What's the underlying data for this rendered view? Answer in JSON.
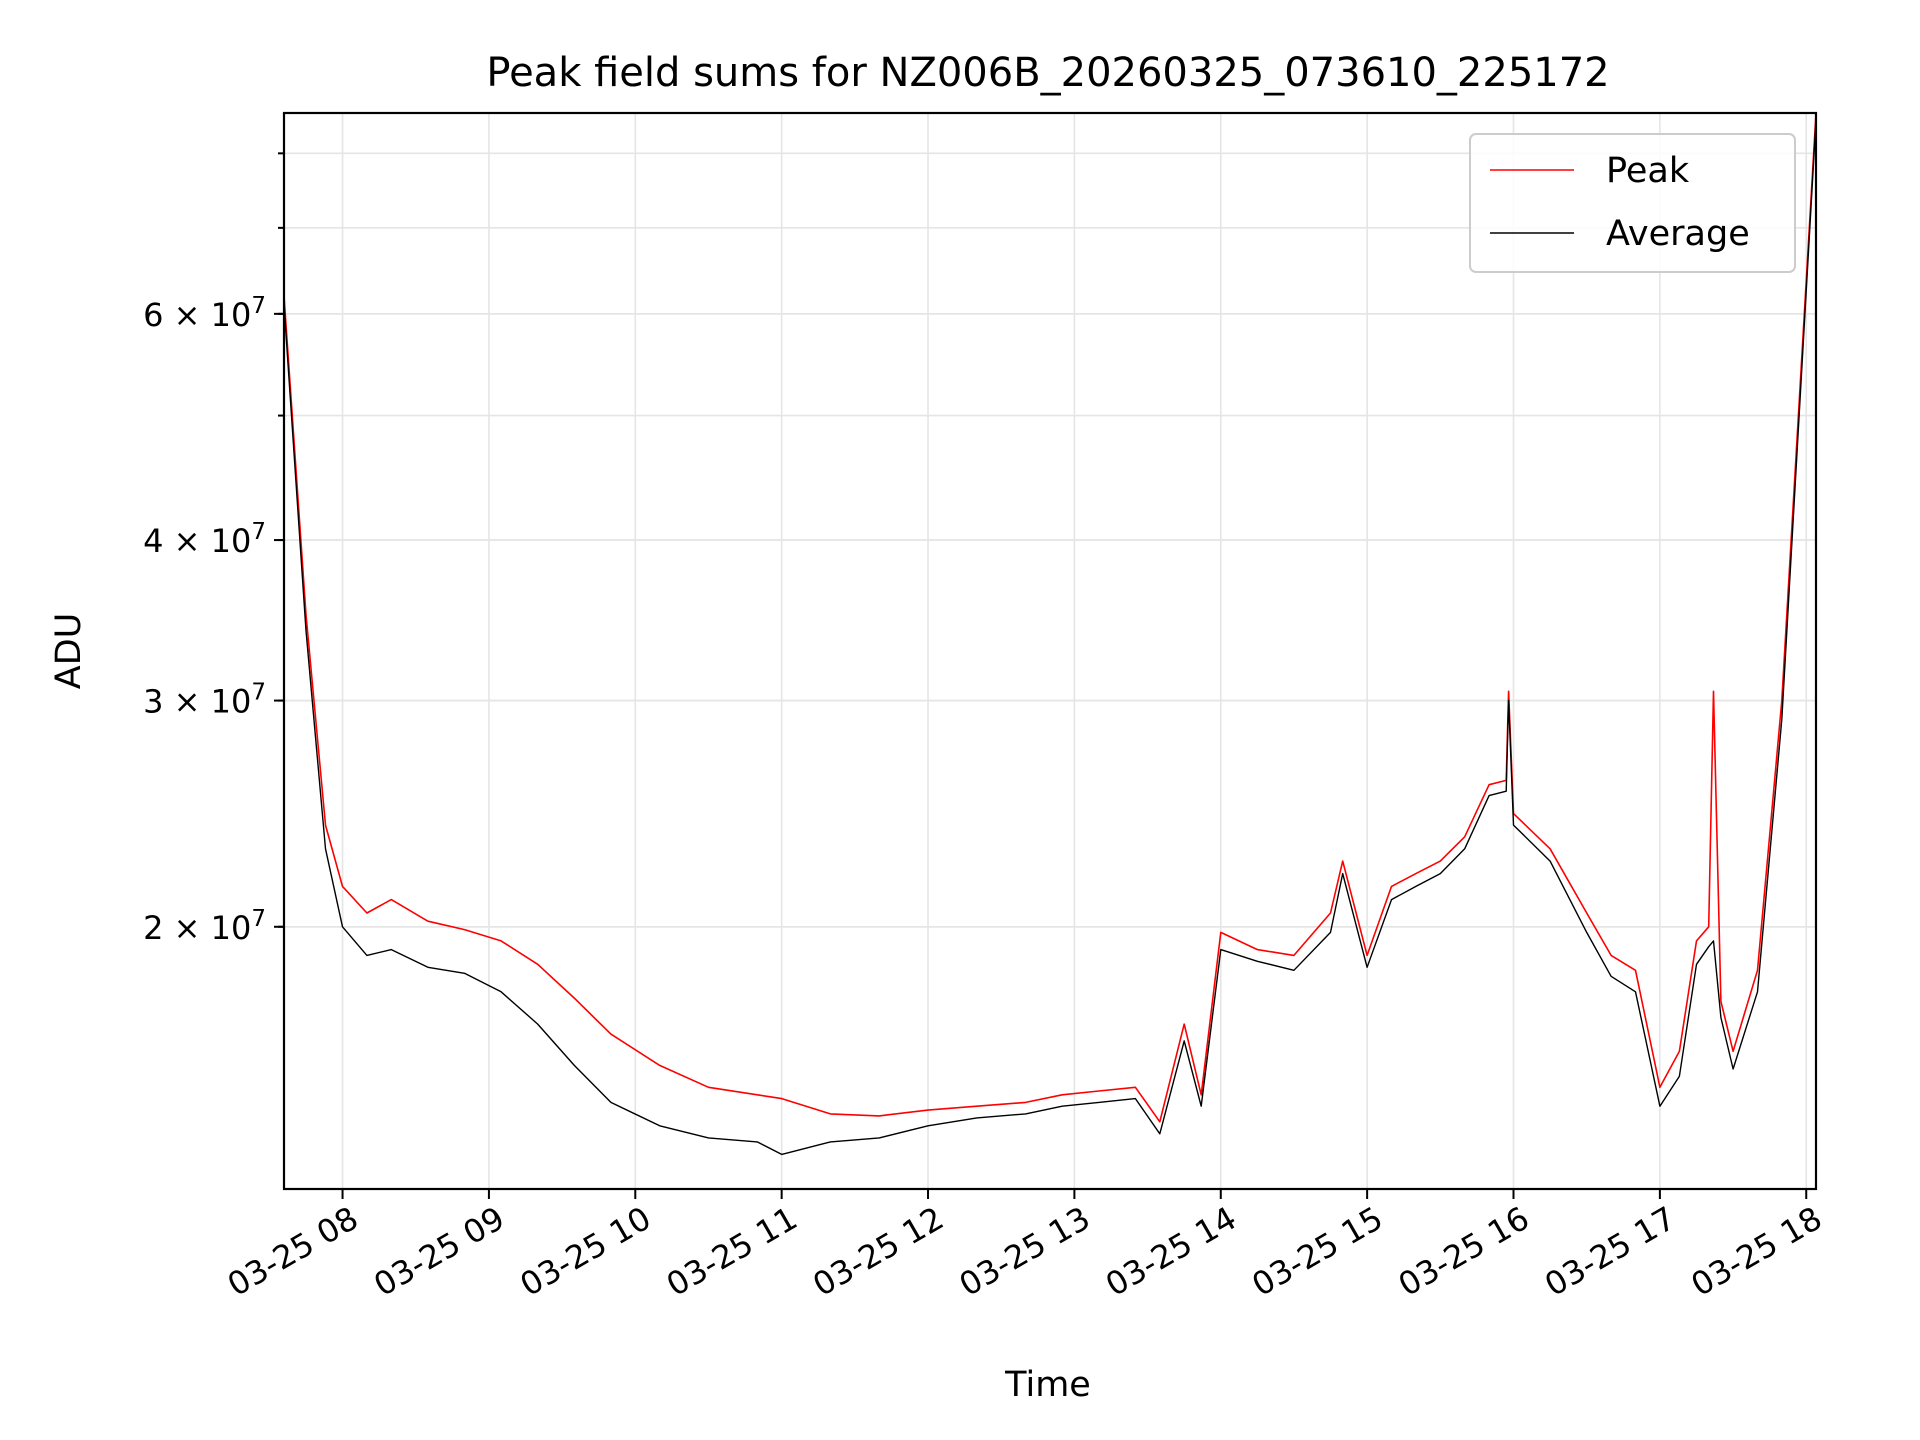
{
  "chart_data": {
    "type": "line",
    "title": "Peak field sums for NZ006B_20260325_073610_225172",
    "xlabel": "Time",
    "ylabel": "ADU",
    "y_scale": "log",
    "ylim": [
      12500000,
      86000000
    ],
    "x_range": [
      "03-25 07:36",
      "03-25 18:04"
    ],
    "x_ticks": [
      "03-25 08",
      "03-25 09",
      "03-25 10",
      "03-25 11",
      "03-25 12",
      "03-25 13",
      "03-25 14",
      "03-25 15",
      "03-25 16",
      "03-25 17",
      "03-25 18"
    ],
    "y_ticks": [
      {
        "value": 20000000,
        "mantissa": "2",
        "base": "10",
        "exp": "7"
      },
      {
        "value": 30000000,
        "mantissa": "3",
        "base": "10",
        "exp": "7"
      },
      {
        "value": 40000000,
        "mantissa": "4",
        "base": "10",
        "exp": "7"
      },
      {
        "value": 60000000,
        "mantissa": "6",
        "base": "10",
        "exp": "7"
      }
    ],
    "grid": true,
    "legend_position": "top-right",
    "series": [
      {
        "name": "Peak",
        "color": "#ff0000",
        "points": [
          [
            "03-25 07:36",
            62000000
          ],
          [
            "03-25 07:45",
            35000000
          ],
          [
            "03-25 07:53",
            24000000
          ],
          [
            "03-25 08:00",
            21500000
          ],
          [
            "03-25 08:10",
            20500000
          ],
          [
            "03-25 08:20",
            21000000
          ],
          [
            "03-25 08:35",
            20200000
          ],
          [
            "03-25 08:50",
            19900000
          ],
          [
            "03-25 09:05",
            19500000
          ],
          [
            "03-25 09:20",
            18700000
          ],
          [
            "03-25 09:35",
            17600000
          ],
          [
            "03-25 09:50",
            16500000
          ],
          [
            "03-25 10:10",
            15600000
          ],
          [
            "03-25 10:30",
            15000000
          ],
          [
            "03-25 10:50",
            14800000
          ],
          [
            "03-25 11:00",
            14700000
          ],
          [
            "03-25 11:20",
            14300000
          ],
          [
            "03-25 11:40",
            14250000
          ],
          [
            "03-25 12:00",
            14400000
          ],
          [
            "03-25 12:20",
            14500000
          ],
          [
            "03-25 12:40",
            14600000
          ],
          [
            "03-25 12:55",
            14800000
          ],
          [
            "03-25 13:10",
            14900000
          ],
          [
            "03-25 13:25",
            15000000
          ],
          [
            "03-25 13:35",
            14100000
          ],
          [
            "03-25 13:45",
            16800000
          ],
          [
            "03-25 13:52",
            14800000
          ],
          [
            "03-25 14:00",
            19800000
          ],
          [
            "03-25 14:15",
            19200000
          ],
          [
            "03-25 14:30",
            19000000
          ],
          [
            "03-25 14:45",
            20500000
          ],
          [
            "03-25 14:50",
            22500000
          ],
          [
            "03-25 15:00",
            19000000
          ],
          [
            "03-25 15:10",
            21500000
          ],
          [
            "03-25 15:20",
            22000000
          ],
          [
            "03-25 15:30",
            22500000
          ],
          [
            "03-25 15:40",
            23500000
          ],
          [
            "03-25 15:50",
            25800000
          ],
          [
            "03-25 15:57",
            26000000
          ],
          [
            "03-25 15:58",
            30500000
          ],
          [
            "03-25 16:00",
            24500000
          ],
          [
            "03-25 16:15",
            23000000
          ],
          [
            "03-25 16:30",
            20500000
          ],
          [
            "03-25 16:40",
            19000000
          ],
          [
            "03-25 16:50",
            18500000
          ],
          [
            "03-25 17:00",
            15000000
          ],
          [
            "03-25 17:08",
            16000000
          ],
          [
            "03-25 17:15",
            19500000
          ],
          [
            "03-25 17:20",
            20000000
          ],
          [
            "03-25 17:22",
            30500000
          ],
          [
            "03-25 17:25",
            17500000
          ],
          [
            "03-25 17:30",
            16000000
          ],
          [
            "03-25 17:40",
            18500000
          ],
          [
            "03-25 17:50",
            30000000
          ],
          [
            "03-25 18:04",
            86000000
          ]
        ]
      },
      {
        "name": "Average",
        "color": "#000000",
        "points": [
          [
            "03-25 07:36",
            61000000
          ],
          [
            "03-25 07:45",
            34000000
          ],
          [
            "03-25 07:53",
            23000000
          ],
          [
            "03-25 08:00",
            20000000
          ],
          [
            "03-25 08:10",
            19000000
          ],
          [
            "03-25 08:20",
            19200000
          ],
          [
            "03-25 08:35",
            18600000
          ],
          [
            "03-25 08:50",
            18400000
          ],
          [
            "03-25 09:05",
            17800000
          ],
          [
            "03-25 09:20",
            16800000
          ],
          [
            "03-25 09:35",
            15600000
          ],
          [
            "03-25 09:50",
            14600000
          ],
          [
            "03-25 10:10",
            14000000
          ],
          [
            "03-25 10:30",
            13700000
          ],
          [
            "03-25 10:50",
            13600000
          ],
          [
            "03-25 11:00",
            13300000
          ],
          [
            "03-25 11:20",
            13600000
          ],
          [
            "03-25 11:40",
            13700000
          ],
          [
            "03-25 12:00",
            14000000
          ],
          [
            "03-25 12:20",
            14200000
          ],
          [
            "03-25 12:40",
            14300000
          ],
          [
            "03-25 12:55",
            14500000
          ],
          [
            "03-25 13:10",
            14600000
          ],
          [
            "03-25 13:25",
            14700000
          ],
          [
            "03-25 13:35",
            13800000
          ],
          [
            "03-25 13:45",
            16300000
          ],
          [
            "03-25 13:52",
            14500000
          ],
          [
            "03-25 14:00",
            19200000
          ],
          [
            "03-25 14:15",
            18800000
          ],
          [
            "03-25 14:30",
            18500000
          ],
          [
            "03-25 14:45",
            19800000
          ],
          [
            "03-25 14:50",
            22000000
          ],
          [
            "03-25 15:00",
            18600000
          ],
          [
            "03-25 15:10",
            21000000
          ],
          [
            "03-25 15:20",
            21500000
          ],
          [
            "03-25 15:30",
            22000000
          ],
          [
            "03-25 15:40",
            23000000
          ],
          [
            "03-25 15:50",
            25300000
          ],
          [
            "03-25 15:57",
            25500000
          ],
          [
            "03-25 15:58",
            30000000
          ],
          [
            "03-25 16:00",
            24000000
          ],
          [
            "03-25 16:15",
            22500000
          ],
          [
            "03-25 16:30",
            19800000
          ],
          [
            "03-25 16:40",
            18300000
          ],
          [
            "03-25 16:50",
            17800000
          ],
          [
            "03-25 17:00",
            14500000
          ],
          [
            "03-25 17:08",
            15300000
          ],
          [
            "03-25 17:15",
            18700000
          ],
          [
            "03-25 17:20",
            19300000
          ],
          [
            "03-25 17:22",
            19500000
          ],
          [
            "03-25 17:25",
            17000000
          ],
          [
            "03-25 17:30",
            15500000
          ],
          [
            "03-25 17:40",
            17800000
          ],
          [
            "03-25 17:50",
            29000000
          ],
          [
            "03-25 18:04",
            85000000
          ]
        ]
      }
    ]
  }
}
